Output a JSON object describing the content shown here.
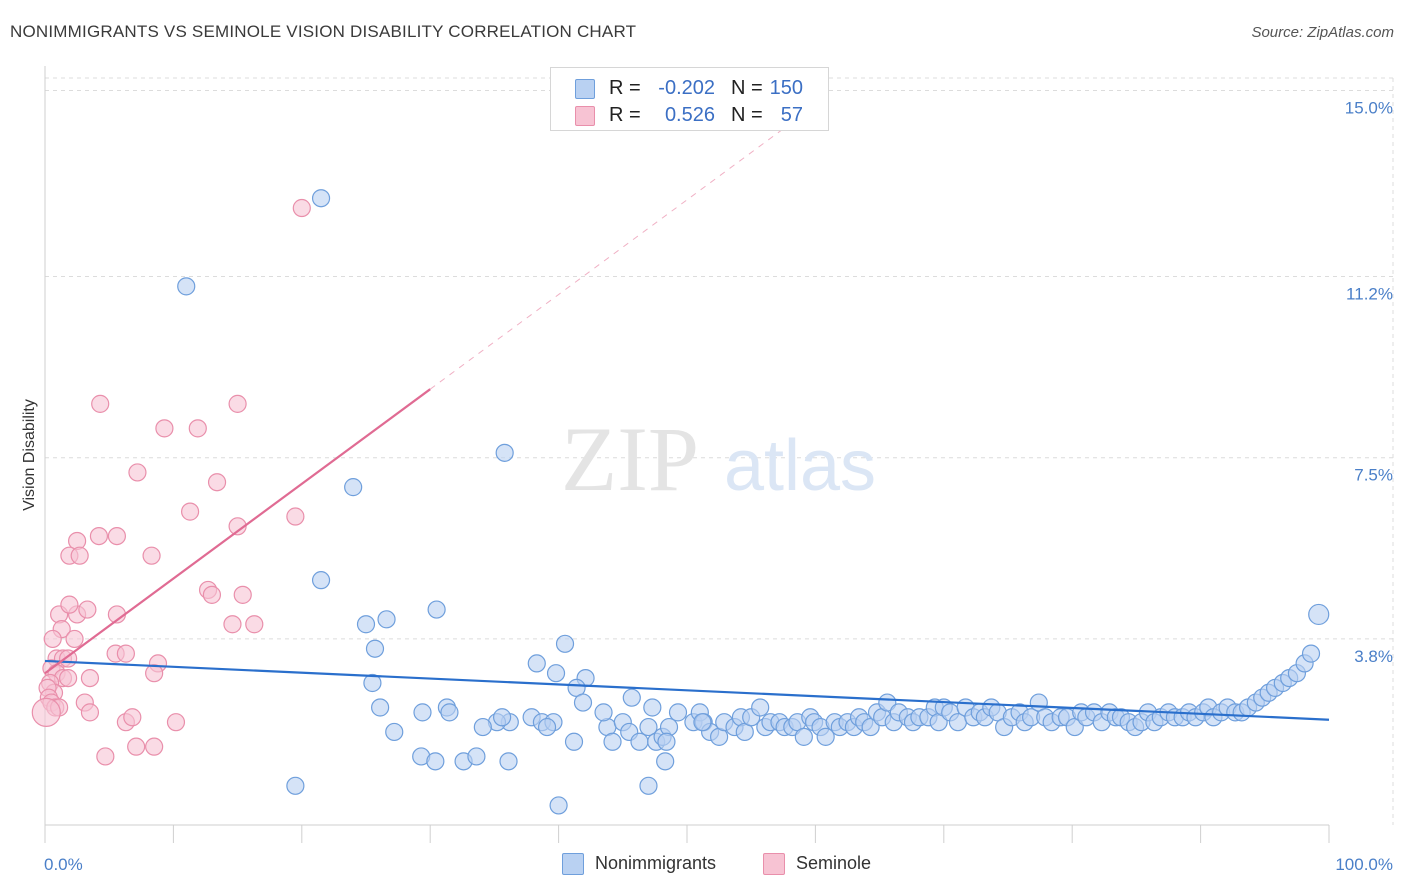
{
  "title": "NONIMMIGRANTS VS SEMINOLE VISION DISABILITY CORRELATION CHART",
  "source": "Source: ZipAtlas.com",
  "watermark": {
    "zip": "ZIP",
    "atlas": "atlas"
  },
  "legend": {
    "rows": [
      {
        "r_label": "R =",
        "r_value": "-0.202",
        "n_label": "N =",
        "n_value": "150"
      },
      {
        "r_label": "R =",
        "r_value": "0.526",
        "n_label": "N =",
        "n_value": "57"
      }
    ]
  },
  "bottom_legend": {
    "series1": "Nonimmigrants",
    "series2": "Seminole"
  },
  "colors": {
    "blue_fill": "#b9d1f2",
    "blue_stroke": "#6f9fdc",
    "blue_line": "#2a6fcc",
    "pink_fill": "#f7c3d3",
    "pink_stroke": "#e98fab",
    "pink_line": "#e06b93",
    "grid": "#dcdcdc",
    "tick_text": "#4a7fc8"
  },
  "chart_data": {
    "type": "scatter",
    "ylabel": "Vision Disability",
    "xlim": [
      0,
      100
    ],
    "ylim": [
      0,
      15.5
    ],
    "y_ticks": [
      {
        "value": 3.8,
        "label": "3.8%"
      },
      {
        "value": 7.5,
        "label": "7.5%"
      },
      {
        "value": 11.2,
        "label": "11.2%"
      },
      {
        "value": 15.0,
        "label": "15.0%"
      }
    ],
    "x_ticks": [
      {
        "value": 0,
        "label": "0.0%"
      },
      {
        "value": 100,
        "label": "100.0%"
      }
    ],
    "series": [
      {
        "name": "Nonimmigrants",
        "color_key": "blue",
        "trend": {
          "x0": 0,
          "y0": 3.35,
          "x1": 100,
          "y1": 2.15
        },
        "points": [
          [
            11,
            11.0
          ],
          [
            21.5,
            12.8
          ],
          [
            35.8,
            7.6
          ],
          [
            24,
            6.9
          ],
          [
            21.5,
            5.0
          ],
          [
            30.5,
            4.4
          ],
          [
            26.6,
            4.2
          ],
          [
            25,
            4.1
          ],
          [
            25.7,
            3.6
          ],
          [
            40.5,
            3.7
          ],
          [
            38.3,
            3.3
          ],
          [
            39.8,
            3.1
          ],
          [
            25.5,
            2.9
          ],
          [
            42.1,
            3.0
          ],
          [
            26.1,
            2.4
          ],
          [
            29.4,
            2.3
          ],
          [
            31.3,
            2.4
          ],
          [
            31.5,
            2.3
          ],
          [
            36.2,
            2.1
          ],
          [
            37.9,
            2.2
          ],
          [
            38.7,
            2.1
          ],
          [
            39.6,
            2.1
          ],
          [
            35.2,
            2.1
          ],
          [
            35.6,
            2.2
          ],
          [
            34.1,
            2.0
          ],
          [
            27.2,
            1.9
          ],
          [
            29.3,
            1.4
          ],
          [
            30.4,
            1.3
          ],
          [
            32.6,
            1.3
          ],
          [
            33.6,
            1.4
          ],
          [
            36.1,
            1.3
          ],
          [
            41.4,
            2.8
          ],
          [
            41.9,
            2.5
          ],
          [
            43.8,
            2.0
          ],
          [
            45,
            2.1
          ],
          [
            44.2,
            1.7
          ],
          [
            45.5,
            1.9
          ],
          [
            43.5,
            2.3
          ],
          [
            46.3,
            1.7
          ],
          [
            47,
            2.0
          ],
          [
            47.6,
            1.7
          ],
          [
            48.1,
            1.8
          ],
          [
            48.6,
            2.0
          ],
          [
            48.4,
            1.7
          ],
          [
            49.3,
            2.3
          ],
          [
            50.5,
            2.1
          ],
          [
            51,
            2.3
          ],
          [
            51.3,
            2.1
          ],
          [
            51.8,
            1.9
          ],
          [
            52.5,
            1.8
          ],
          [
            52.9,
            2.1
          ],
          [
            53.7,
            2.0
          ],
          [
            54.2,
            2.2
          ],
          [
            54.5,
            1.9
          ],
          [
            55,
            2.2
          ],
          [
            55.7,
            2.4
          ],
          [
            56.1,
            2.0
          ],
          [
            56.5,
            2.1
          ],
          [
            57.2,
            2.1
          ],
          [
            57.6,
            2.0
          ],
          [
            58.2,
            2.0
          ],
          [
            58.6,
            2.1
          ],
          [
            59.1,
            1.8
          ],
          [
            59.6,
            2.2
          ],
          [
            59.9,
            2.1
          ],
          [
            60.4,
            2.0
          ],
          [
            60.8,
            1.8
          ],
          [
            61.5,
            2.1
          ],
          [
            61.9,
            2.0
          ],
          [
            62.5,
            2.1
          ],
          [
            63,
            2.0
          ],
          [
            63.4,
            2.2
          ],
          [
            63.8,
            2.1
          ],
          [
            64.3,
            2.0
          ],
          [
            64.8,
            2.3
          ],
          [
            65.2,
            2.2
          ],
          [
            65.6,
            2.5
          ],
          [
            66.1,
            2.1
          ],
          [
            66.5,
            2.3
          ],
          [
            67.2,
            2.2
          ],
          [
            67.6,
            2.1
          ],
          [
            68.1,
            2.2
          ],
          [
            68.8,
            2.2
          ],
          [
            69.3,
            2.4
          ],
          [
            69.6,
            2.1
          ],
          [
            70,
            2.4
          ],
          [
            70.5,
            2.3
          ],
          [
            71.1,
            2.1
          ],
          [
            71.7,
            2.4
          ],
          [
            72.3,
            2.2
          ],
          [
            72.8,
            2.3
          ],
          [
            73.2,
            2.2
          ],
          [
            73.7,
            2.4
          ],
          [
            74.2,
            2.3
          ],
          [
            74.7,
            2.0
          ],
          [
            75.3,
            2.2
          ],
          [
            75.9,
            2.3
          ],
          [
            76.3,
            2.1
          ],
          [
            76.8,
            2.2
          ],
          [
            77.4,
            2.5
          ],
          [
            77.9,
            2.2
          ],
          [
            78.4,
            2.1
          ],
          [
            79.1,
            2.2
          ],
          [
            79.6,
            2.2
          ],
          [
            80.2,
            2.0
          ],
          [
            80.7,
            2.3
          ],
          [
            81.1,
            2.2
          ],
          [
            81.7,
            2.3
          ],
          [
            82.3,
            2.1
          ],
          [
            82.9,
            2.3
          ],
          [
            83.4,
            2.2
          ],
          [
            83.8,
            2.2
          ],
          [
            84.4,
            2.1
          ],
          [
            84.9,
            2.0
          ],
          [
            85.4,
            2.1
          ],
          [
            85.9,
            2.3
          ],
          [
            86.4,
            2.1
          ],
          [
            86.9,
            2.2
          ],
          [
            87.5,
            2.3
          ],
          [
            88,
            2.2
          ],
          [
            88.6,
            2.2
          ],
          [
            89.1,
            2.3
          ],
          [
            89.6,
            2.2
          ],
          [
            90.2,
            2.3
          ],
          [
            90.6,
            2.4
          ],
          [
            91,
            2.2
          ],
          [
            91.6,
            2.3
          ],
          [
            92.1,
            2.4
          ],
          [
            92.7,
            2.3
          ],
          [
            93.2,
            2.3
          ],
          [
            93.7,
            2.4
          ],
          [
            94.3,
            2.5
          ],
          [
            94.8,
            2.6
          ],
          [
            95.3,
            2.7
          ],
          [
            95.8,
            2.8
          ],
          [
            96.4,
            2.9
          ],
          [
            96.9,
            3.0
          ],
          [
            97.5,
            3.1
          ],
          [
            98.1,
            3.3
          ],
          [
            98.6,
            3.5
          ],
          [
            99.2,
            4.3
          ],
          [
            48.3,
            1.3
          ],
          [
            47,
            0.8
          ],
          [
            51.2,
            2.1
          ],
          [
            19.5,
            0.8
          ],
          [
            40,
            0.4
          ],
          [
            39.1,
            2.0
          ],
          [
            41.2,
            1.7
          ],
          [
            45.7,
            2.6
          ],
          [
            47.3,
            2.4
          ]
        ]
      },
      {
        "name": "Seminole",
        "color_key": "pink",
        "trend": {
          "x0": 0,
          "y0": 3.1,
          "x1": 30,
          "y1": 8.9,
          "dash_to_x": 58
        },
        "points": [
          [
            20,
            12.6
          ],
          [
            4.3,
            8.6
          ],
          [
            9.3,
            8.1
          ],
          [
            11.9,
            8.1
          ],
          [
            15,
            8.6
          ],
          [
            7.2,
            7.2
          ],
          [
            13.4,
            7.0
          ],
          [
            11.3,
            6.4
          ],
          [
            15,
            6.1
          ],
          [
            19.5,
            6.3
          ],
          [
            2.5,
            5.8
          ],
          [
            4.2,
            5.9
          ],
          [
            5.6,
            5.9
          ],
          [
            1.9,
            5.5
          ],
          [
            2.7,
            5.5
          ],
          [
            8.3,
            5.5
          ],
          [
            12.7,
            4.8
          ],
          [
            13,
            4.7
          ],
          [
            15.4,
            4.7
          ],
          [
            2.5,
            4.3
          ],
          [
            1.1,
            4.3
          ],
          [
            1.9,
            4.5
          ],
          [
            3.3,
            4.4
          ],
          [
            5.6,
            4.3
          ],
          [
            14.6,
            4.1
          ],
          [
            16.3,
            4.1
          ],
          [
            1.3,
            4.0
          ],
          [
            2.3,
            3.8
          ],
          [
            5.5,
            3.5
          ],
          [
            6.3,
            3.5
          ],
          [
            0.6,
            3.8
          ],
          [
            0.9,
            3.4
          ],
          [
            1.4,
            3.4
          ],
          [
            1.8,
            3.4
          ],
          [
            0.5,
            3.2
          ],
          [
            0.9,
            3.1
          ],
          [
            1.4,
            3.0
          ],
          [
            1.8,
            3.0
          ],
          [
            0.4,
            2.9
          ],
          [
            0.7,
            2.7
          ],
          [
            8.8,
            3.3
          ],
          [
            8.5,
            3.1
          ],
          [
            3.5,
            3.0
          ],
          [
            0.2,
            2.8
          ],
          [
            0.3,
            2.6
          ],
          [
            0.5,
            2.5
          ],
          [
            0.8,
            2.4
          ],
          [
            1.1,
            2.4
          ],
          [
            3.1,
            2.5
          ],
          [
            3.5,
            2.3
          ],
          [
            6.3,
            2.1
          ],
          [
            6.8,
            2.2
          ],
          [
            10.2,
            2.1
          ],
          [
            4.7,
            1.4
          ],
          [
            7.1,
            1.6
          ],
          [
            8.5,
            1.6
          ],
          [
            0.1,
            2.3
          ]
        ]
      }
    ]
  }
}
